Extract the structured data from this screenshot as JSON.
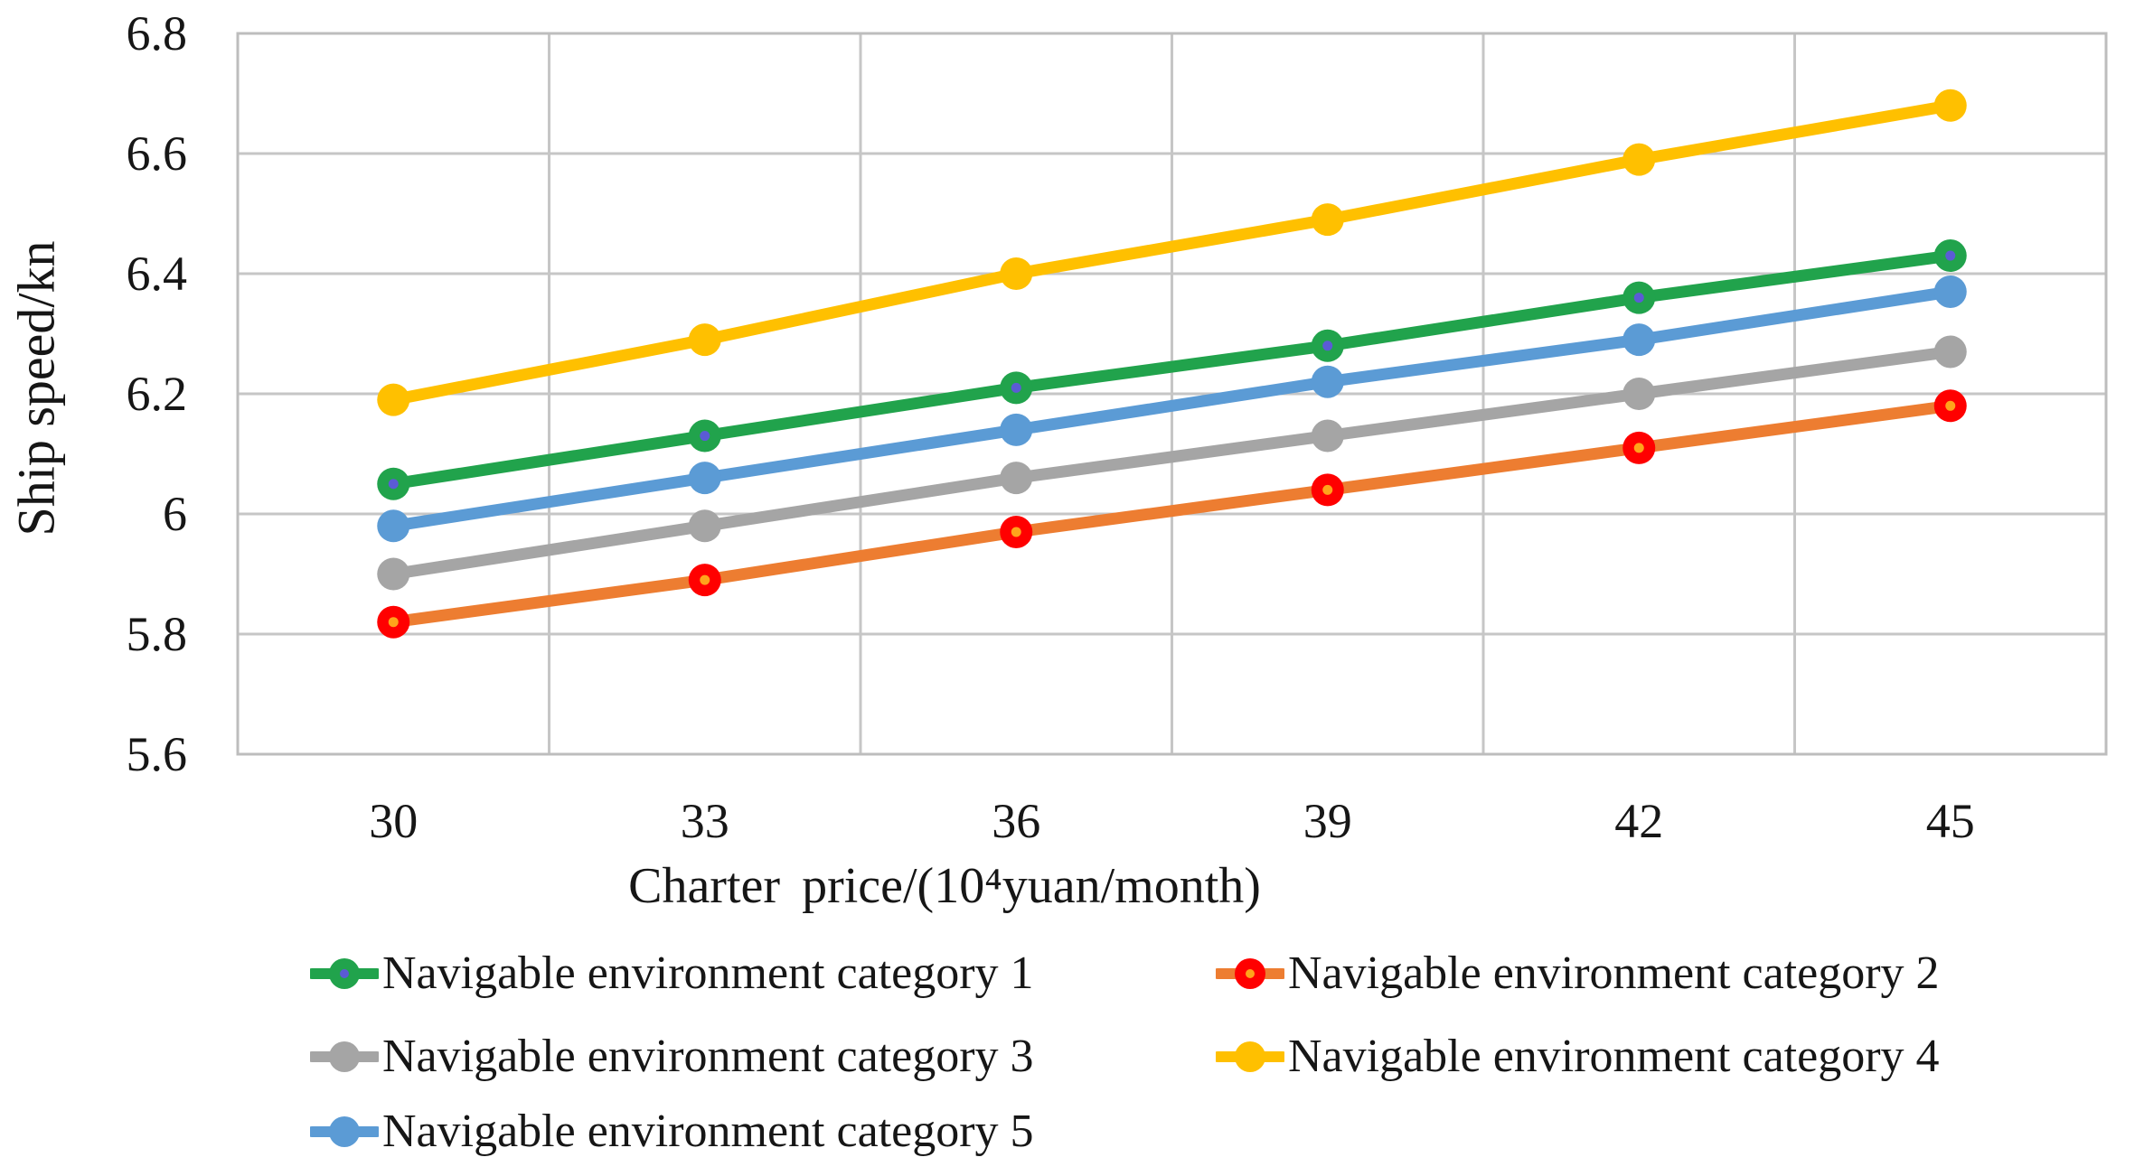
{
  "chart_data": {
    "type": "line",
    "title": "",
    "xlabel": "Charter price/(10⁴yuan/month)",
    "ylabel": "Ship speed/kn",
    "x_categories": [
      "30",
      "33",
      "36",
      "39",
      "42",
      "45"
    ],
    "x_values": [
      30,
      33,
      36,
      39,
      42,
      45
    ],
    "ytick_labels": [
      "6.8",
      "6.6",
      "6.4",
      "6.2",
      "6",
      "5.8",
      "5.6"
    ],
    "ylim": [
      5.6,
      6.8
    ],
    "ytick_step": 0.2,
    "grid": "both",
    "gridline_color": "#c6c6c6",
    "legend_position": "bottom, two columns",
    "series": [
      {
        "name": "Navigable environment category 1",
        "line_color": "#21a34c",
        "marker_color": "#21a34c",
        "marker_dot_color": "#5b5bd5",
        "values": [
          6.05,
          6.13,
          6.21,
          6.28,
          6.36,
          6.43
        ]
      },
      {
        "name": "Navigable environment category 2",
        "line_color": "#ed7d31",
        "marker_color": "#ff0000",
        "marker_dot_color": "#ffa41b",
        "values": [
          5.82,
          5.89,
          5.97,
          6.04,
          6.11,
          6.18
        ]
      },
      {
        "name": "Navigable environment category 3",
        "line_color": "#a5a5a5",
        "marker_color": "#a5a5a5",
        "values": [
          5.9,
          5.98,
          6.06,
          6.13,
          6.2,
          6.27
        ]
      },
      {
        "name": "Navigable environment category 4",
        "line_color": "#ffc000",
        "marker_color": "#ffc000",
        "values": [
          6.19,
          6.29,
          6.4,
          6.49,
          6.59,
          6.68
        ]
      },
      {
        "name": "Navigable environment category 5",
        "line_color": "#5b9bd5",
        "marker_color": "#5b9bd5",
        "values": [
          5.98,
          6.06,
          6.14,
          6.22,
          6.29,
          6.37
        ]
      }
    ]
  }
}
